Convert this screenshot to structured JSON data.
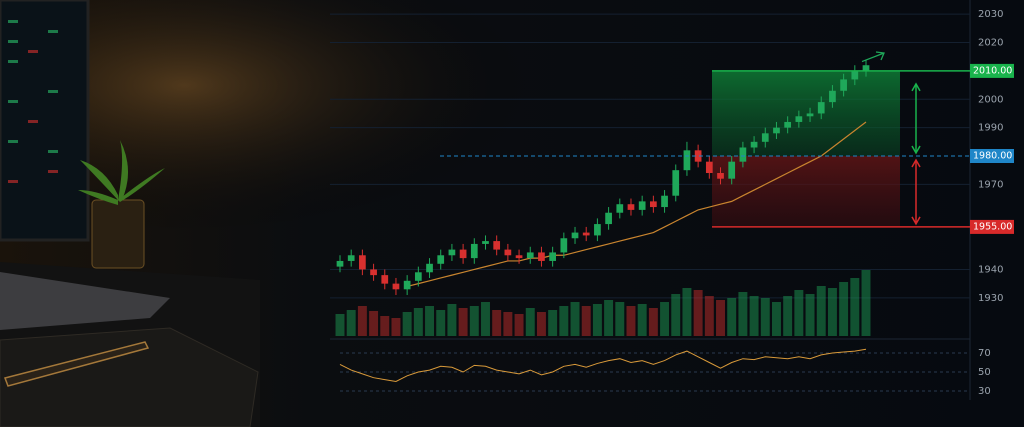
{
  "chart_data": {
    "type": "candlestick",
    "open": [
      1941,
      1943,
      1945,
      1940,
      1938,
      1935,
      1933,
      1936,
      1939,
      1942,
      1945,
      1947,
      1944,
      1949,
      1950,
      1947,
      1945,
      1944,
      1946,
      1943,
      1946,
      1951,
      1953,
      1952,
      1956,
      1960,
      1963,
      1961,
      1964,
      1962,
      1966,
      1975,
      1982,
      1978,
      1974,
      1972,
      1978,
      1983,
      1985,
      1988,
      1990,
      1992,
      1994,
      1995,
      1999,
      2003,
      2007,
      2010
    ],
    "high": [
      1945,
      1947,
      1947,
      1942,
      1940,
      1937,
      1938,
      1941,
      1944,
      1947,
      1949,
      1949,
      1951,
      1952,
      1952,
      1949,
      1947,
      1948,
      1948,
      1948,
      1953,
      1955,
      1955,
      1958,
      1962,
      1965,
      1965,
      1966,
      1966,
      1968,
      1977,
      1985,
      1984,
      1980,
      1976,
      1980,
      1985,
      1987,
      1990,
      1992,
      1994,
      1996,
      1997,
      2001,
      2005,
      2009,
      2012,
      2014
    ],
    "low": [
      1939,
      1941,
      1938,
      1936,
      1933,
      1931,
      1931,
      1934,
      1937,
      1940,
      1943,
      1942,
      1942,
      1947,
      1945,
      1943,
      1942,
      1942,
      1941,
      1941,
      1944,
      1949,
      1950,
      1950,
      1954,
      1958,
      1959,
      1959,
      1960,
      1960,
      1964,
      1973,
      1976,
      1972,
      1970,
      1970,
      1976,
      1981,
      1983,
      1986,
      1988,
      1990,
      1992,
      1993,
      1997,
      2001,
      2005,
      2008
    ],
    "close": [
      1943,
      1945,
      1940,
      1938,
      1935,
      1933,
      1936,
      1939,
      1942,
      1945,
      1947,
      1944,
      1949,
      1950,
      1947,
      1945,
      1944,
      1946,
      1943,
      1946,
      1951,
      1953,
      1952,
      1956,
      1960,
      1963,
      1961,
      1964,
      1962,
      1966,
      1975,
      1982,
      1978,
      1974,
      1972,
      1978,
      1983,
      1985,
      1988,
      1990,
      1992,
      1994,
      1995,
      1999,
      2003,
      2007,
      2010,
      2012
    ],
    "moving_average": [
      null,
      null,
      null,
      null,
      null,
      null,
      1934,
      1935,
      1936,
      1937,
      1938,
      1939,
      1940,
      1941,
      1942,
      1943,
      1943,
      1944,
      1944,
      1945,
      1945,
      1946,
      1947,
      1948,
      1949,
      1950,
      1951,
      1952,
      1953,
      1955,
      1957,
      1959,
      1961,
      1962,
      1963,
      1964,
      1966,
      1968,
      1970,
      1972,
      1974,
      1976,
      1978,
      1980,
      1983,
      1986,
      1989,
      1992
    ],
    "volume": [
      22,
      26,
      30,
      25,
      20,
      18,
      24,
      28,
      30,
      26,
      32,
      28,
      30,
      34,
      26,
      24,
      22,
      28,
      24,
      26,
      30,
      34,
      30,
      32,
      36,
      34,
      30,
      32,
      28,
      34,
      42,
      48,
      46,
      40,
      36,
      38,
      44,
      40,
      38,
      34,
      40,
      46,
      42,
      50,
      48,
      54,
      58,
      66
    ],
    "up_color": "#1fa85a",
    "down_color": "#d8302f",
    "ma_color": "#c9852f",
    "ylim": [
      1925,
      2035
    ],
    "yticks": [
      1930,
      1940,
      1970,
      1990,
      2000,
      2020,
      2030
    ],
    "levels": [
      {
        "value": 2010,
        "label": "2010.00",
        "color": "#19b34c"
      },
      {
        "value": 1980,
        "label": "1980.00",
        "color": "#1f86c8"
      },
      {
        "value": 1955,
        "label": "1955.00",
        "color": "#d82a2a"
      }
    ],
    "rsi": {
      "values": [
        58,
        52,
        48,
        44,
        42,
        40,
        46,
        50,
        52,
        56,
        55,
        50,
        57,
        56,
        52,
        50,
        48,
        52,
        47,
        50,
        56,
        58,
        55,
        59,
        62,
        64,
        60,
        62,
        58,
        62,
        68,
        72,
        66,
        60,
        54,
        60,
        64,
        63,
        66,
        65,
        64,
        66,
        64,
        68,
        70,
        71,
        72,
        74
      ],
      "ylim": [
        22,
        80
      ],
      "yticks": [
        30,
        50,
        70
      ],
      "color": "#d99a3a"
    }
  }
}
